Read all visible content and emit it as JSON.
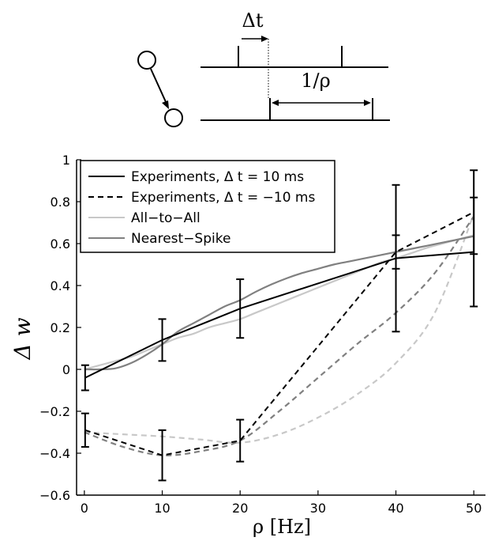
{
  "diagram": {
    "delta_t_label": "Δt",
    "rate_label": "1/ρ"
  },
  "chart_data": {
    "type": "line",
    "xlabel": "ρ [Hz]",
    "ylabel": "Δ w",
    "xlim": [
      -1,
      51.5
    ],
    "ylim": [
      -0.6,
      1.0
    ],
    "xticks": [
      0,
      10,
      20,
      30,
      40,
      50
    ],
    "yticks": [
      -0.6,
      -0.4,
      -0.2,
      0,
      0.2,
      0.4,
      0.6,
      0.8,
      1
    ],
    "grid": false,
    "legend_position": "top-left",
    "series": [
      {
        "name": "Experiments, Δ t = 10 ms",
        "style": "solid",
        "color": "#000000",
        "x": [
          0.1,
          10,
          20,
          40,
          50
        ],
        "y": [
          -0.04,
          0.14,
          0.29,
          0.53,
          0.56
        ],
        "error": [
          0.06,
          0.1,
          0.14,
          0.35,
          0.26
        ]
      },
      {
        "name": "Experiments, Δ t = −10 ms",
        "style": "dashed",
        "color": "#000000",
        "x": [
          0.1,
          10,
          20,
          40,
          50
        ],
        "y": [
          -0.29,
          -0.41,
          -0.34,
          0.56,
          0.75
        ],
        "error": [
          0.08,
          0.12,
          0.1,
          0.08,
          0.2
        ]
      },
      {
        "name": "All−to−All",
        "style": "solid",
        "color": "#c8c8c8",
        "x": [
          0,
          2,
          4,
          6,
          8,
          10,
          12,
          14,
          16,
          18,
          20,
          22,
          24,
          26,
          28,
          30,
          32,
          34,
          36,
          38,
          40,
          42,
          44,
          46,
          48,
          50
        ],
        "y": [
          0,
          0.02,
          0.04,
          0.06,
          0.09,
          0.12,
          0.15,
          0.17,
          0.2,
          0.22,
          0.24,
          0.27,
          0.3,
          0.33,
          0.36,
          0.39,
          0.42,
          0.45,
          0.48,
          0.51,
          0.53,
          0.555,
          0.58,
          0.6,
          0.62,
          0.64
        ]
      },
      {
        "name": "Nearest−Spike",
        "style": "solid",
        "color": "#808080",
        "x": [
          0,
          2,
          4,
          6,
          8,
          10,
          12,
          14,
          16,
          18,
          20,
          22,
          24,
          26,
          28,
          30,
          32,
          34,
          36,
          38,
          40,
          42,
          44,
          46,
          48,
          50
        ],
        "y": [
          0,
          0,
          0.005,
          0.03,
          0.07,
          0.12,
          0.18,
          0.22,
          0.26,
          0.3,
          0.33,
          0.37,
          0.405,
          0.435,
          0.46,
          0.48,
          0.5,
          0.515,
          0.53,
          0.545,
          0.56,
          0.575,
          0.59,
          0.605,
          0.62,
          0.635
        ]
      },
      {
        "name": "",
        "style": "dashed",
        "color": "#c8c8c8",
        "x": [
          0,
          5,
          10,
          15,
          20,
          25,
          30,
          35,
          40,
          45,
          50
        ],
        "y": [
          -0.3,
          -0.31,
          -0.32,
          -0.335,
          -0.35,
          -0.31,
          -0.23,
          -0.12,
          0.03,
          0.27,
          0.74
        ]
      },
      {
        "name": "",
        "style": "dashed",
        "color": "#808080",
        "x": [
          0,
          5,
          10,
          15,
          20,
          25,
          30,
          35,
          40,
          45,
          50
        ],
        "y": [
          -0.3,
          -0.37,
          -0.41,
          -0.39,
          -0.34,
          -0.2,
          -0.04,
          0.12,
          0.27,
          0.46,
          0.73
        ]
      }
    ]
  }
}
